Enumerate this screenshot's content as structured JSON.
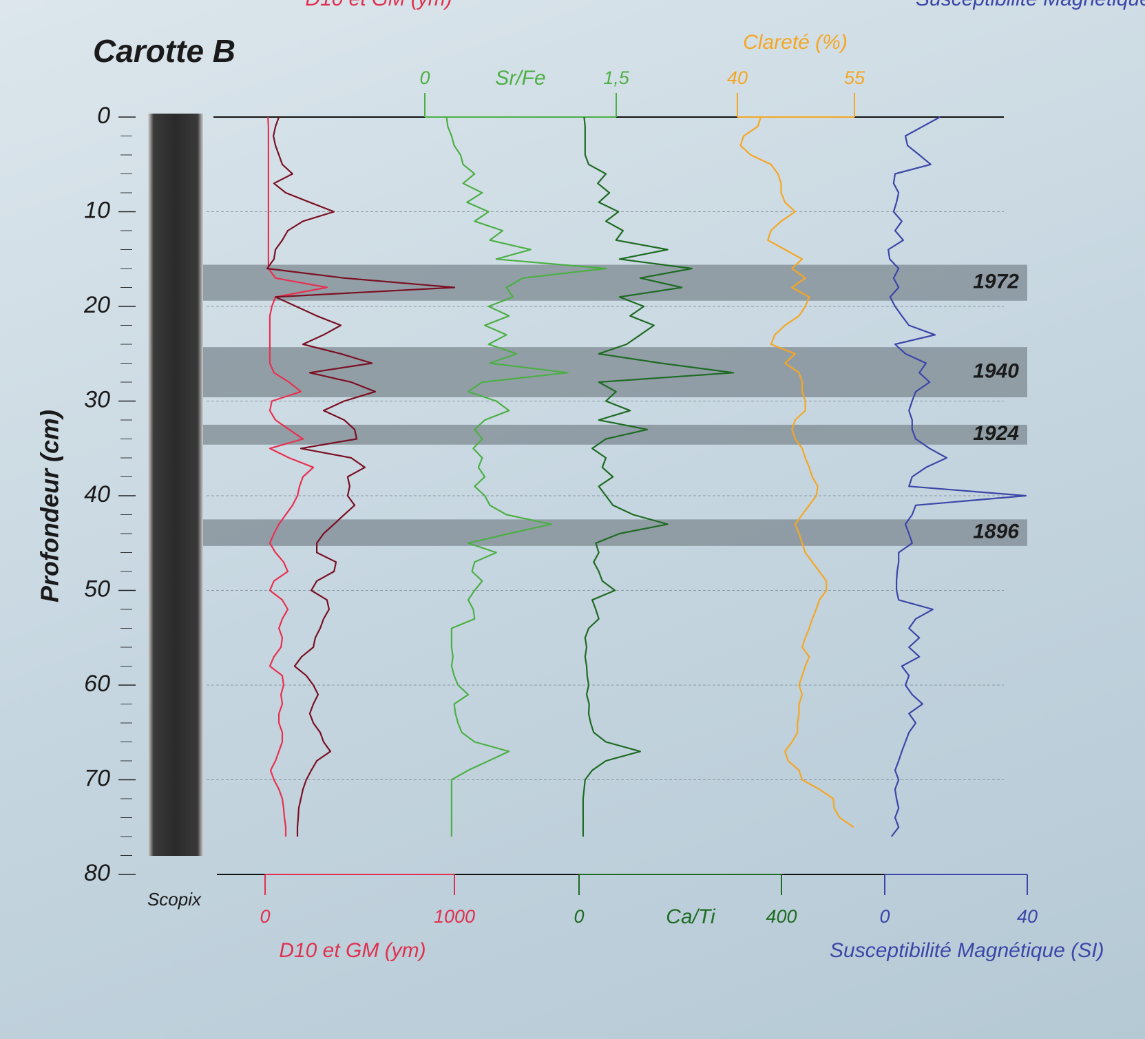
{
  "chart_data": {
    "type": "core-log",
    "title": "Carotte B",
    "ylabel": "Profondeur (cm)",
    "core_label": "Scopix",
    "ylim": [
      0,
      80
    ],
    "yticks": [
      0,
      10,
      20,
      30,
      40,
      50,
      60,
      70,
      80
    ],
    "yminorticks": [
      2,
      4,
      6,
      8,
      12,
      14,
      16,
      18,
      22,
      24,
      26,
      28,
      32,
      34,
      36,
      38,
      42,
      44,
      46,
      48,
      52,
      54,
      56,
      58,
      62,
      64,
      66,
      68,
      72,
      74,
      76,
      78
    ],
    "grid": true,
    "axes": [
      {
        "name": "D10 et GM (ym)",
        "color": "#e0304f",
        "xlim": [
          0,
          1000
        ],
        "xticks": [
          0,
          1000
        ]
      },
      {
        "name": "Sr/Fe",
        "color": "#4caf45",
        "xlim": [
          0,
          1.5
        ],
        "xticks": [
          0,
          {
            "value": 1.5,
            "label": "1,5"
          }
        ]
      },
      {
        "name": "Ca/Ti",
        "color": "#1e6b23",
        "xlim": [
          0,
          400
        ],
        "xticks": [
          0,
          400
        ]
      },
      {
        "name": "Clareté (%)",
        "color": "#f5a623",
        "xlim": [
          40,
          55
        ],
        "xticks": [
          40,
          55
        ]
      },
      {
        "name": "Susceptibilité Magnétique (SI)",
        "color": "#3b46a8",
        "xlim": [
          0,
          40
        ],
        "xticks": [
          0,
          40
        ]
      }
    ],
    "events": [
      {
        "label": "1972",
        "top": 15.6,
        "bottom": 19.4
      },
      {
        "label": "1940",
        "top": 24.3,
        "bottom": 29.6
      },
      {
        "label": "1924",
        "top": 32.5,
        "bottom": 34.6
      },
      {
        "label": "1896",
        "top": 42.5,
        "bottom": 45.3
      }
    ],
    "depths": [
      0,
      1,
      2,
      3,
      4,
      5,
      6,
      7,
      8,
      9,
      10,
      11,
      12,
      13,
      14,
      15,
      16,
      17,
      18,
      19,
      20,
      21,
      22,
      23,
      24,
      25,
      26,
      27,
      28,
      29,
      30,
      31,
      32,
      33,
      34,
      35,
      36,
      37,
      38,
      39,
      40,
      41,
      42,
      43,
      44,
      45,
      46,
      47,
      48,
      49,
      50,
      51,
      52,
      53,
      54,
      55,
      56,
      57,
      58,
      59,
      60,
      61,
      62,
      63,
      64,
      65,
      66,
      67,
      68,
      69,
      70,
      71,
      72,
      73,
      74,
      75,
      76
    ],
    "series": [
      {
        "name": "D10",
        "axis": 0,
        "color": "#e8304f",
        "values": [
          15,
          18,
          18,
          18,
          18,
          18,
          18,
          18,
          18,
          18,
          18,
          18,
          18,
          18,
          18,
          18,
          18,
          55,
          327,
          55,
          36,
          25,
          25,
          25,
          25,
          25,
          25,
          47,
          127,
          189,
          36,
          25,
          55,
          127,
          200,
          25,
          127,
          255,
          200,
          182,
          171,
          145,
          109,
          73,
          47,
          25,
          55,
          98,
          120,
          47,
          25,
          91,
          120,
          91,
          73,
          91,
          84,
          47,
          25,
          91,
          98,
          84,
          91,
          73,
          73,
          91,
          91,
          73,
          55,
          29,
          47,
          73,
          91,
          98,
          102,
          109,
          109
        ]
      },
      {
        "name": "GM",
        "axis": 0,
        "color": "#7a0f22",
        "values": [
          73,
          55,
          44,
          55,
          73,
          91,
          145,
          47,
          109,
          236,
          364,
          200,
          120,
          91,
          55,
          47,
          11,
          418,
          1000,
          55,
          164,
          273,
          400,
          309,
          200,
          400,
          564,
          236,
          455,
          582,
          418,
          309,
          418,
          473,
          484,
          189,
          455,
          527,
          436,
          447,
          436,
          473,
          418,
          364,
          309,
          273,
          273,
          375,
          364,
          273,
          244,
          327,
          338,
          309,
          291,
          265,
          255,
          193,
          156,
          218,
          255,
          280,
          255,
          236,
          255,
          291,
          309,
          345,
          273,
          244,
          218,
          200,
          189,
          178,
          175,
          171,
          171
        ]
      },
      {
        "name": "Sr/Fe",
        "axis": 1,
        "color": "#4caf45",
        "values": [
          0.17,
          0.18,
          0.21,
          0.23,
          0.28,
          0.3,
          0.39,
          0.3,
          0.45,
          0.33,
          0.5,
          0.39,
          0.61,
          0.51,
          0.83,
          0.56,
          1.42,
          0.77,
          0.64,
          0.69,
          0.5,
          0.66,
          0.47,
          0.64,
          0.5,
          0.72,
          0.51,
          1.12,
          0.45,
          0.34,
          0.56,
          0.66,
          0.47,
          0.39,
          0.45,
          0.38,
          0.45,
          0.42,
          0.47,
          0.39,
          0.47,
          0.51,
          0.64,
          0.99,
          0.66,
          0.34,
          0.56,
          0.39,
          0.37,
          0.45,
          0.39,
          0.34,
          0.38,
          0.39,
          0.21,
          0.21,
          0.21,
          0.22,
          0.21,
          0.23,
          0.26,
          0.34,
          0.23,
          0.24,
          0.26,
          0.29,
          0.39,
          0.66,
          0.5,
          0.34,
          0.21,
          0.21,
          0.21,
          0.21,
          0.21,
          0.21,
          0.21
        ]
      },
      {
        "name": "Ca/Ti",
        "axis": 2,
        "color": "#1e6b23",
        "values": [
          10,
          12,
          12,
          12,
          12,
          19,
          53,
          37,
          60,
          39,
          78,
          53,
          87,
          73,
          175,
          80,
          223,
          121,
          203,
          80,
          128,
          101,
          148,
          121,
          94,
          39,
          162,
          305,
          39,
          73,
          53,
          101,
          39,
          135,
          53,
          26,
          53,
          46,
          67,
          39,
          53,
          67,
          107,
          175,
          80,
          33,
          39,
          29,
          39,
          46,
          71,
          26,
          33,
          39,
          19,
          12,
          15,
          12,
          15,
          16,
          19,
          15,
          20,
          19,
          23,
          29,
          53,
          121,
          53,
          26,
          12,
          10,
          8,
          8,
          8,
          8,
          8
        ]
      },
      {
        "name": "Clareté",
        "axis": 3,
        "color": "#f5a623",
        "values": [
          43.0,
          42.6,
          40.8,
          40.4,
          41.7,
          44.3,
          45.2,
          45.6,
          45.6,
          46.1,
          47.4,
          45.6,
          44.3,
          43.9,
          46.1,
          48.3,
          47.0,
          48.7,
          47.0,
          49.2,
          48.7,
          47.9,
          46.1,
          44.8,
          44.3,
          47.4,
          46.1,
          47.9,
          48.3,
          48.3,
          48.7,
          48.7,
          47.4,
          47.0,
          47.4,
          48.3,
          48.7,
          49.2,
          49.6,
          50.3,
          50.1,
          49.2,
          48.3,
          47.4,
          47.9,
          48.3,
          48.7,
          49.6,
          50.5,
          51.4,
          51.4,
          50.5,
          50.1,
          49.6,
          49.2,
          48.7,
          48.3,
          49.2,
          48.7,
          48.3,
          47.9,
          48.3,
          47.9,
          47.9,
          47.7,
          47.7,
          47.0,
          46.1,
          46.5,
          47.9,
          48.3,
          50.5,
          52.3,
          52.4,
          53.1,
          54.9,
          null
        ]
      },
      {
        "name": "Susceptibilité",
        "axis": 4,
        "color": "#3b46a8",
        "values": [
          15.5,
          10.6,
          5.8,
          6.4,
          9.7,
          12.9,
          2.9,
          2.5,
          3.9,
          3.3,
          2.5,
          4.8,
          2.9,
          5.2,
          1.0,
          1.4,
          3.9,
          2.5,
          3.9,
          1.5,
          2.9,
          4.8,
          6.8,
          14.1,
          2.9,
          5.8,
          11.6,
          9.7,
          12.6,
          8.7,
          7.7,
          6.8,
          7.7,
          7.7,
          8.7,
          12.6,
          17.4,
          11.6,
          7.7,
          6.8,
          39.6,
          8.7,
          7.7,
          5.8,
          6.8,
          7.7,
          3.9,
          3.9,
          3.5,
          3.3,
          3.3,
          3.9,
          13.5,
          8.7,
          6.8,
          9.7,
          6.8,
          9.7,
          4.8,
          6.8,
          5.8,
          7.7,
          10.6,
          6.8,
          8.7,
          6.8,
          5.8,
          4.8,
          3.9,
          2.9,
          3.9,
          2.9,
          3.3,
          3.9,
          2.9,
          3.9,
          1.9
        ]
      }
    ]
  }
}
